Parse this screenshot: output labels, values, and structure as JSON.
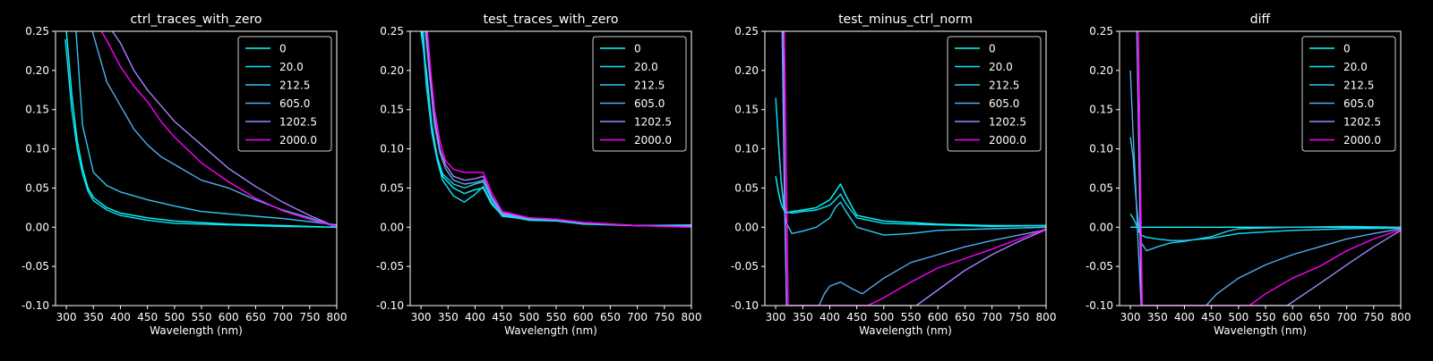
{
  "colors": {
    "background": "#000000",
    "axes": "#ffffff",
    "text": "#ffffff",
    "legend_edge": "#cccccc",
    "series": [
      "#00ffff",
      "#0de6f8",
      "#30c7ee",
      "#55aaf0",
      "#aa80ff",
      "#ff00ff"
    ]
  },
  "chart_data": [
    {
      "type": "line",
      "title": "ctrl_traces_with_zero",
      "xlabel": "Wavelength (nm)",
      "ylabel": "",
      "xlim": [
        280,
        800
      ],
      "ylim": [
        -0.1,
        0.25
      ],
      "xticks": [
        300,
        350,
        400,
        450,
        500,
        550,
        600,
        650,
        700,
        750,
        800
      ],
      "yticks": [
        -0.1,
        -0.05,
        0.0,
        0.05,
        0.1,
        0.15,
        0.2,
        0.25
      ],
      "grid": false,
      "legend": "top-right",
      "series": [
        {
          "name": "0",
          "x": [
            300,
            310,
            320,
            330,
            340,
            350,
            375,
            400,
            450,
            500,
            600,
            700,
            800
          ],
          "y": [
            0.25,
            0.17,
            0.11,
            0.075,
            0.05,
            0.038,
            0.025,
            0.018,
            0.012,
            0.008,
            0.004,
            0.002,
            0.0
          ]
        },
        {
          "name": "20.0",
          "x": [
            298,
            310,
            320,
            330,
            340,
            350,
            375,
            400,
            450,
            500,
            600,
            700,
            800
          ],
          "y": [
            0.24,
            0.15,
            0.1,
            0.068,
            0.046,
            0.034,
            0.022,
            0.015,
            0.009,
            0.005,
            0.003,
            0.001,
            0.0
          ]
        },
        {
          "name": "212.5",
          "x": [
            318,
            330,
            350,
            375,
            400,
            450,
            500,
            550,
            600,
            650,
            700,
            750,
            800
          ],
          "y": [
            0.25,
            0.13,
            0.07,
            0.053,
            0.045,
            0.035,
            0.027,
            0.02,
            0.017,
            0.014,
            0.011,
            0.007,
            0.003
          ]
        },
        {
          "name": "605.0",
          "x": [
            348,
            375,
            400,
            425,
            450,
            475,
            500,
            550,
            600,
            650,
            700,
            750,
            800
          ],
          "y": [
            0.25,
            0.185,
            0.155,
            0.125,
            0.105,
            0.09,
            0.08,
            0.06,
            0.05,
            0.035,
            0.022,
            0.012,
            0.0
          ]
        },
        {
          "name": "1202.5",
          "x": [
            385,
            400,
            425,
            450,
            475,
            500,
            550,
            600,
            650,
            700,
            750,
            800
          ],
          "y": [
            0.25,
            0.235,
            0.2,
            0.175,
            0.155,
            0.135,
            0.105,
            0.075,
            0.052,
            0.032,
            0.015,
            0.0
          ]
        },
        {
          "name": "2000.0",
          "x": [
            365,
            375,
            400,
            425,
            450,
            475,
            500,
            550,
            600,
            650,
            700,
            750,
            800
          ],
          "y": [
            0.25,
            0.238,
            0.205,
            0.18,
            0.16,
            0.135,
            0.115,
            0.082,
            0.058,
            0.037,
            0.021,
            0.01,
            0.001
          ]
        }
      ]
    },
    {
      "type": "line",
      "title": "test_traces_with_zero",
      "xlabel": "Wavelength (nm)",
      "ylabel": "",
      "xlim": [
        280,
        800
      ],
      "ylim": [
        -0.1,
        0.25
      ],
      "xticks": [
        300,
        350,
        400,
        450,
        500,
        550,
        600,
        650,
        700,
        750,
        800
      ],
      "yticks": [
        -0.1,
        -0.05,
        0.0,
        0.05,
        0.1,
        0.15,
        0.2,
        0.25
      ],
      "grid": false,
      "legend": "top-right",
      "series": [
        {
          "name": "0",
          "x": [
            300,
            310,
            320,
            330,
            340,
            360,
            380,
            400,
            415,
            430,
            450,
            500,
            550,
            600,
            700,
            800
          ],
          "y": [
            0.25,
            0.2,
            0.13,
            0.09,
            0.065,
            0.05,
            0.043,
            0.048,
            0.05,
            0.03,
            0.015,
            0.009,
            0.008,
            0.004,
            0.002,
            0.002
          ]
        },
        {
          "name": "20.0",
          "x": [
            302,
            310,
            320,
            330,
            340,
            360,
            380,
            400,
            415,
            430,
            450,
            500,
            550,
            600,
            700,
            800
          ],
          "y": [
            0.25,
            0.18,
            0.12,
            0.085,
            0.06,
            0.04,
            0.032,
            0.042,
            0.052,
            0.032,
            0.014,
            0.01,
            0.009,
            0.005,
            0.002,
            0.003
          ]
        },
        {
          "name": "212.5",
          "x": [
            304,
            310,
            320,
            330,
            340,
            360,
            380,
            400,
            415,
            430,
            450,
            500,
            550,
            600,
            700,
            800
          ],
          "y": [
            0.25,
            0.19,
            0.125,
            0.09,
            0.068,
            0.055,
            0.05,
            0.055,
            0.058,
            0.036,
            0.016,
            0.01,
            0.009,
            0.005,
            0.002,
            0.002
          ]
        },
        {
          "name": "605.0",
          "x": [
            308,
            315,
            325,
            335,
            345,
            360,
            380,
            400,
            415,
            430,
            450,
            500,
            550,
            600,
            700,
            800
          ],
          "y": [
            0.25,
            0.2,
            0.13,
            0.095,
            0.075,
            0.06,
            0.055,
            0.057,
            0.06,
            0.037,
            0.017,
            0.011,
            0.009,
            0.005,
            0.002,
            0.001
          ]
        },
        {
          "name": "1202.5",
          "x": [
            310,
            315,
            325,
            335,
            345,
            360,
            380,
            400,
            415,
            430,
            450,
            500,
            550,
            600,
            700,
            800
          ],
          "y": [
            0.25,
            0.21,
            0.14,
            0.1,
            0.08,
            0.065,
            0.06,
            0.062,
            0.065,
            0.04,
            0.018,
            0.012,
            0.01,
            0.006,
            0.002,
            0.001
          ]
        },
        {
          "name": "2000.0",
          "x": [
            312,
            318,
            325,
            335,
            345,
            360,
            380,
            400,
            415,
            430,
            450,
            500,
            550,
            600,
            700,
            800
          ],
          "y": [
            0.25,
            0.2,
            0.15,
            0.11,
            0.085,
            0.074,
            0.07,
            0.07,
            0.07,
            0.045,
            0.02,
            0.012,
            0.01,
            0.006,
            0.002,
            0.0
          ]
        }
      ]
    },
    {
      "type": "line",
      "title": "test_minus_ctrl_norm",
      "xlabel": "Wavelength (nm)",
      "ylabel": "",
      "xlim": [
        280,
        800
      ],
      "ylim": [
        -0.1,
        0.25
      ],
      "xticks": [
        300,
        350,
        400,
        450,
        500,
        550,
        600,
        650,
        700,
        750,
        800
      ],
      "yticks": [
        -0.1,
        -0.05,
        0.0,
        0.05,
        0.1,
        0.15,
        0.2,
        0.25
      ],
      "grid": false,
      "legend": "top-right",
      "series": [
        {
          "name": "0",
          "x": [
            300,
            305,
            310,
            315,
            320,
            330,
            350,
            375,
            400,
            410,
            420,
            430,
            450,
            500,
            600,
            700,
            800
          ],
          "y": [
            0.065,
            0.045,
            0.03,
            0.022,
            0.018,
            0.02,
            0.022,
            0.025,
            0.035,
            0.045,
            0.055,
            0.04,
            0.015,
            0.008,
            0.004,
            0.002,
            0.002
          ]
        },
        {
          "name": "20.0",
          "x": [
            300,
            305,
            310,
            315,
            320,
            330,
            350,
            375,
            400,
            410,
            420,
            430,
            450,
            500,
            600,
            700,
            800
          ],
          "y": [
            0.165,
            0.11,
            0.06,
            0.03,
            0.02,
            0.018,
            0.02,
            0.022,
            0.028,
            0.035,
            0.042,
            0.03,
            0.012,
            0.005,
            0.003,
            0.001,
            0.002
          ]
        },
        {
          "name": "212.5",
          "x": [
            305,
            310,
            315,
            320,
            330,
            350,
            375,
            400,
            410,
            420,
            430,
            450,
            500,
            550,
            600,
            700,
            800
          ],
          "y": [
            0.11,
            0.06,
            0.025,
            0.005,
            -0.008,
            -0.005,
            0.0,
            0.012,
            0.025,
            0.032,
            0.02,
            0.0,
            -0.01,
            -0.008,
            -0.004,
            -0.002,
            0.0
          ]
        },
        {
          "name": "605.0",
          "x": [
            312,
            316,
            320,
            380,
            390,
            400,
            420,
            440,
            460,
            500,
            550,
            600,
            650,
            700,
            750,
            800
          ],
          "y": [
            0.25,
            0.05,
            -0.1,
            -0.1,
            -0.085,
            -0.075,
            -0.07,
            -0.078,
            -0.085,
            -0.065,
            -0.045,
            -0.035,
            -0.025,
            -0.017,
            -0.01,
            -0.003
          ]
        },
        {
          "name": "1202.5",
          "x": [
            314,
            317,
            320,
            560,
            600,
            650,
            700,
            750,
            800
          ],
          "y": [
            0.25,
            0.05,
            -0.1,
            -0.1,
            -0.08,
            -0.055,
            -0.035,
            -0.018,
            -0.003
          ]
        },
        {
          "name": "2000.0",
          "x": [
            316,
            320,
            323,
            470,
            500,
            550,
            600,
            650,
            700,
            750,
            800
          ],
          "y": [
            0.25,
            0.05,
            -0.1,
            -0.1,
            -0.09,
            -0.07,
            -0.052,
            -0.04,
            -0.028,
            -0.015,
            -0.002
          ]
        }
      ]
    },
    {
      "type": "line",
      "title": "diff",
      "xlabel": "Wavelength (nm)",
      "ylabel": "",
      "xlim": [
        280,
        800
      ],
      "ylim": [
        -0.1,
        0.25
      ],
      "xticks": [
        300,
        350,
        400,
        450,
        500,
        550,
        600,
        650,
        700,
        750,
        800
      ],
      "yticks": [
        -0.1,
        -0.05,
        0.0,
        0.05,
        0.1,
        0.15,
        0.2,
        0.25
      ],
      "grid": false,
      "legend": "top-right",
      "series": [
        {
          "name": "0",
          "x": [
            300,
            800
          ],
          "y": [
            0.0,
            0.0
          ]
        },
        {
          "name": "20.0",
          "x": [
            300,
            305,
            310,
            315,
            320,
            330,
            350,
            375,
            400,
            450,
            500,
            600,
            700,
            800
          ],
          "y": [
            0.017,
            0.012,
            0.005,
            -0.005,
            -0.01,
            -0.013,
            -0.015,
            -0.017,
            -0.017,
            -0.014,
            -0.008,
            -0.004,
            -0.002,
            -0.001
          ]
        },
        {
          "name": "212.5",
          "x": [
            300,
            305,
            310,
            315,
            320,
            330,
            350,
            375,
            400,
            450,
            480,
            500,
            600,
            700,
            800
          ],
          "y": [
            0.115,
            0.09,
            0.04,
            0.005,
            -0.02,
            -0.03,
            -0.025,
            -0.02,
            -0.018,
            -0.012,
            -0.005,
            -0.002,
            0.0,
            0.001,
            0.0
          ]
        },
        {
          "name": "605.0",
          "x": [
            300,
            305,
            310,
            315,
            320,
            440,
            460,
            500,
            550,
            600,
            650,
            700,
            750,
            800
          ],
          "y": [
            0.2,
            0.12,
            0.05,
            -0.03,
            -0.1,
            -0.1,
            -0.085,
            -0.065,
            -0.048,
            -0.035,
            -0.025,
            -0.015,
            -0.008,
            -0.002
          ]
        },
        {
          "name": "1202.5",
          "x": [
            312,
            317,
            320,
            590,
            650,
            700,
            750,
            800
          ],
          "y": [
            0.25,
            0.05,
            -0.1,
            -0.1,
            -0.072,
            -0.048,
            -0.025,
            -0.004
          ]
        },
        {
          "name": "2000.0",
          "x": [
            315,
            319,
            322,
            520,
            550,
            600,
            650,
            700,
            750,
            800
          ],
          "y": [
            0.25,
            0.05,
            -0.1,
            -0.1,
            -0.085,
            -0.065,
            -0.05,
            -0.03,
            -0.015,
            -0.003
          ]
        }
      ]
    }
  ]
}
